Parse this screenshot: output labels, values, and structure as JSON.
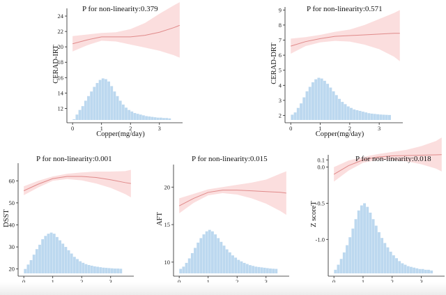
{
  "chart_data": [
    {
      "type": "line",
      "title": "P for non-linearity:0.379",
      "xlabel": "Copper(mg/day)",
      "ylabel": "CERAD-IRT",
      "xlim": [
        -0.1,
        3.8
      ],
      "ylim": [
        10.5,
        25
      ],
      "xticks": [
        0,
        1,
        2,
        3
      ],
      "yticks": [
        12,
        14,
        16,
        18,
        20,
        22,
        24
      ],
      "series": [
        {
          "name": "fit",
          "x": [
            0,
            0.5,
            1,
            1.5,
            2,
            2.5,
            3,
            3.5,
            3.7
          ],
          "y": [
            20.4,
            20.9,
            21.3,
            21.3,
            21.3,
            21.5,
            21.9,
            22.5,
            22.8
          ],
          "lower": [
            19.4,
            20.2,
            20.8,
            20.7,
            20.3,
            19.9,
            19.5,
            18.9,
            18.6
          ],
          "upper": [
            21.4,
            21.6,
            21.8,
            21.9,
            22.3,
            23.1,
            24.3,
            25.4,
            25.8
          ]
        }
      ],
      "histogram": {
        "bin_start": 0.05,
        "bin_width": 0.1,
        "counts": [
          10.6,
          11.2,
          11.8,
          12.3,
          13.0,
          13.6,
          14.2,
          14.8,
          15.3,
          15.7,
          15.9,
          15.8,
          15.5,
          14.9,
          14.2,
          13.6,
          13.0,
          12.5,
          12.1,
          11.8,
          11.6,
          11.4,
          11.3,
          11.2,
          11.1,
          11.0,
          10.95,
          10.9,
          10.85,
          10.8,
          10.8,
          10.75,
          10.75,
          10.7
        ]
      }
    },
    {
      "type": "line",
      "title": "P for non-linearity:0.571",
      "xlabel": "Copper(mg/day)",
      "ylabel": "CERAD-DRT",
      "xlim": [
        -0.1,
        3.8
      ],
      "ylim": [
        1.7,
        9.2
      ],
      "xticks": [
        0,
        1,
        2,
        3
      ],
      "yticks": [
        2,
        3,
        4,
        5,
        6,
        7,
        8,
        9
      ],
      "series": [
        {
          "name": "fit",
          "x": [
            0,
            0.5,
            1,
            1.5,
            2,
            2.5,
            3,
            3.5,
            3.7
          ],
          "y": [
            6.6,
            6.9,
            7.1,
            7.25,
            7.3,
            7.35,
            7.4,
            7.45,
            7.45
          ],
          "lower": [
            6.1,
            6.6,
            6.85,
            6.95,
            6.9,
            6.7,
            6.4,
            5.9,
            5.6
          ],
          "upper": [
            7.1,
            7.2,
            7.35,
            7.55,
            7.7,
            8.0,
            8.4,
            8.8,
            9.0
          ]
        }
      ],
      "histogram": {
        "bin_start": 0.05,
        "bin_width": 0.1,
        "counts": [
          2.05,
          2.2,
          2.5,
          2.8,
          3.2,
          3.6,
          3.9,
          4.2,
          4.4,
          4.5,
          4.45,
          4.3,
          4.1,
          3.85,
          3.6,
          3.35,
          3.1,
          2.9,
          2.75,
          2.6,
          2.5,
          2.4,
          2.35,
          2.3,
          2.25,
          2.2,
          2.15,
          2.12,
          2.1,
          2.08,
          2.06,
          2.05,
          2.04,
          2.03
        ]
      }
    },
    {
      "type": "line",
      "title": "P for non-linearity:0.001",
      "xlabel": "Copper(mg/day)",
      "ylabel": "DSST",
      "xlim": [
        -0.1,
        3.8
      ],
      "ylim": [
        18,
        68
      ],
      "xticks": [
        0,
        1,
        2,
        3
      ],
      "yticks": [
        20,
        30,
        40,
        50,
        60
      ],
      "series": [
        {
          "name": "fit",
          "x": [
            0,
            0.5,
            1,
            1.5,
            2,
            2.5,
            3,
            3.5,
            3.7
          ],
          "y": [
            55.5,
            58.5,
            61.0,
            62.0,
            62.0,
            61.5,
            60.5,
            59.2,
            58.8
          ],
          "lower": [
            53.5,
            57.0,
            60.0,
            60.8,
            60.2,
            58.8,
            56.8,
            54.0,
            52.5
          ],
          "upper": [
            57.5,
            60.0,
            62.0,
            63.2,
            63.8,
            64.2,
            64.2,
            64.4,
            65.0
          ]
        }
      ],
      "histogram": {
        "bin_start": 0.05,
        "bin_width": 0.1,
        "counts": [
          20,
          22,
          24,
          26.5,
          29,
          31,
          33.5,
          35,
          36,
          36.5,
          36,
          34.5,
          33,
          31.5,
          30,
          28.5,
          27,
          25.5,
          24.5,
          23.5,
          22.8,
          22.2,
          21.8,
          21.5,
          21.2,
          21,
          20.8,
          20.6,
          20.5,
          20.4,
          20.3,
          20.2,
          20.2,
          20.1
        ]
      }
    },
    {
      "type": "line",
      "title": "P for non-linearity:0.015",
      "xlabel": "Copper(mg/day)",
      "ylabel": "AFT",
      "xlim": [
        -0.1,
        3.8
      ],
      "ylim": [
        8.5,
        23
      ],
      "xticks": [
        0,
        1,
        2,
        3
      ],
      "yticks": [
        10,
        15,
        20
      ],
      "series": [
        {
          "name": "fit",
          "x": [
            0,
            0.5,
            1,
            1.5,
            2,
            2.5,
            3,
            3.5,
            3.7
          ],
          "y": [
            17.5,
            18.5,
            19.3,
            19.6,
            19.6,
            19.5,
            19.4,
            19.3,
            19.2
          ],
          "lower": [
            16.5,
            17.9,
            18.9,
            19.2,
            19.0,
            18.5,
            17.8,
            16.8,
            16.3
          ],
          "upper": [
            18.5,
            19.1,
            19.7,
            20.0,
            20.3,
            20.6,
            21.0,
            21.8,
            22.1
          ]
        }
      ],
      "histogram": {
        "bin_start": 0.05,
        "bin_width": 0.1,
        "counts": [
          9.1,
          9.4,
          9.9,
          10.5,
          11.2,
          11.9,
          12.6,
          13.2,
          13.7,
          14.1,
          14.3,
          14.1,
          13.7,
          13.2,
          12.7,
          12.2,
          11.7,
          11.3,
          10.9,
          10.6,
          10.3,
          10.1,
          9.9,
          9.75,
          9.6,
          9.5,
          9.4,
          9.35,
          9.3,
          9.25,
          9.2,
          9.15,
          9.12,
          9.1
        ]
      }
    },
    {
      "type": "line",
      "title": "P for non-linearity:0.018",
      "xlabel": "Copper(mg/day)",
      "ylabel": "Z scoreT",
      "xlim": [
        -0.1,
        3.8
      ],
      "ylim": [
        -1.47,
        0.17
      ],
      "xticks": [
        0,
        1,
        2,
        3
      ],
      "yticks": [
        -1.0,
        -0.5,
        0.0,
        0.1
      ],
      "ytick_labels": [
        "-1.0",
        "-0.5",
        "0.0",
        "0.1"
      ],
      "series": [
        {
          "name": "fit",
          "x": [
            0,
            0.5,
            1,
            1.5,
            2,
            2.5,
            3,
            3.5,
            3.7
          ],
          "y": [
            -0.1,
            0.02,
            0.1,
            0.14,
            0.155,
            0.16,
            0.165,
            0.17,
            0.172
          ],
          "lower": [
            -0.2,
            -0.05,
            0.06,
            0.1,
            0.1,
            0.08,
            0.04,
            -0.02,
            -0.06
          ],
          "upper": [
            0.0,
            0.09,
            0.14,
            0.18,
            0.21,
            0.24,
            0.29,
            0.36,
            0.41
          ]
        }
      ],
      "histogram": {
        "bin_start": 0.05,
        "bin_width": 0.1,
        "counts": [
          -1.42,
          -1.35,
          -1.27,
          -1.18,
          -1.08,
          -0.97,
          -0.85,
          -0.72,
          -0.6,
          -0.53,
          -0.5,
          -0.55,
          -0.63,
          -0.72,
          -0.81,
          -0.9,
          -0.98,
          -1.05,
          -1.11,
          -1.17,
          -1.22,
          -1.26,
          -1.3,
          -1.33,
          -1.35,
          -1.37,
          -1.38,
          -1.39,
          -1.4,
          -1.41,
          -1.41,
          -1.42,
          -1.42,
          -1.43
        ]
      }
    }
  ]
}
